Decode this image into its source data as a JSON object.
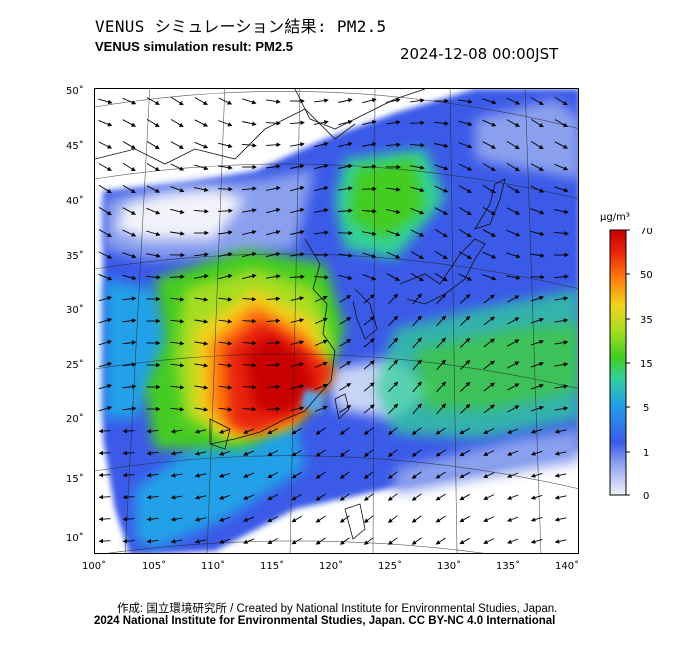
{
  "header": {
    "title_jp": "VENUS シミュレーション結果: PM2.5",
    "title_en": "VENUS simulation result: PM2.5",
    "timestamp": "2024-12-08 00:00JST"
  },
  "map": {
    "lon_ticks": [
      "100˚",
      "105˚",
      "110˚",
      "115˚",
      "120˚",
      "125˚",
      "130˚",
      "135˚",
      "140˚"
    ],
    "lat_ticks": [
      "50˚",
      "45˚",
      "40˚",
      "35˚",
      "30˚",
      "25˚",
      "20˚",
      "15˚",
      "10˚"
    ],
    "lon_range": [
      100,
      141
    ],
    "lat_range": [
      9,
      51
    ]
  },
  "colorbar": {
    "unit": "μg/m³",
    "tick_labels": [
      "70",
      "50",
      "35",
      "15",
      "5",
      "1",
      "0"
    ],
    "colors": [
      "#f2f2fa",
      "#8aa0ee",
      "#3a5ae8",
      "#23a0e8",
      "#33d09a",
      "#44cc22",
      "#a6dd22",
      "#f2d21c",
      "#ff7a10",
      "#e8200a",
      "#c80000"
    ]
  },
  "footer": {
    "credit": "作成: 国立環境研究所 / Created by National Institute for Environmental Studies, Japan.",
    "license": "2024 National Institute for Environmental Studies, Japan. CC BY-NC 4.0 International"
  }
}
